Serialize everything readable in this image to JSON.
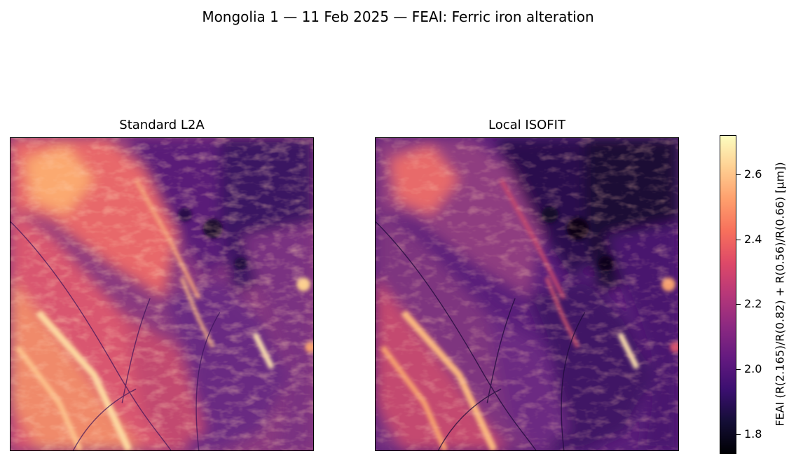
{
  "figure": {
    "title": "Mongolia 1 — 11 Feb 2025 — FEAI: Ferric iron alteration"
  },
  "panels": [
    {
      "title": "Standard L2A"
    },
    {
      "title": "Local ISOFIT"
    }
  ],
  "colorbar": {
    "label": "FEAI  (R(2.165)/R(0.82) + R(0.56)/R(0.66)  [µm])",
    "range": [
      1.74,
      2.72
    ],
    "colormap": "magma",
    "ticks": [
      "1.8",
      "2.0",
      "2.2",
      "2.4",
      "2.6"
    ],
    "tick_values": [
      1.8,
      2.0,
      2.2,
      2.4,
      2.6
    ]
  }
}
